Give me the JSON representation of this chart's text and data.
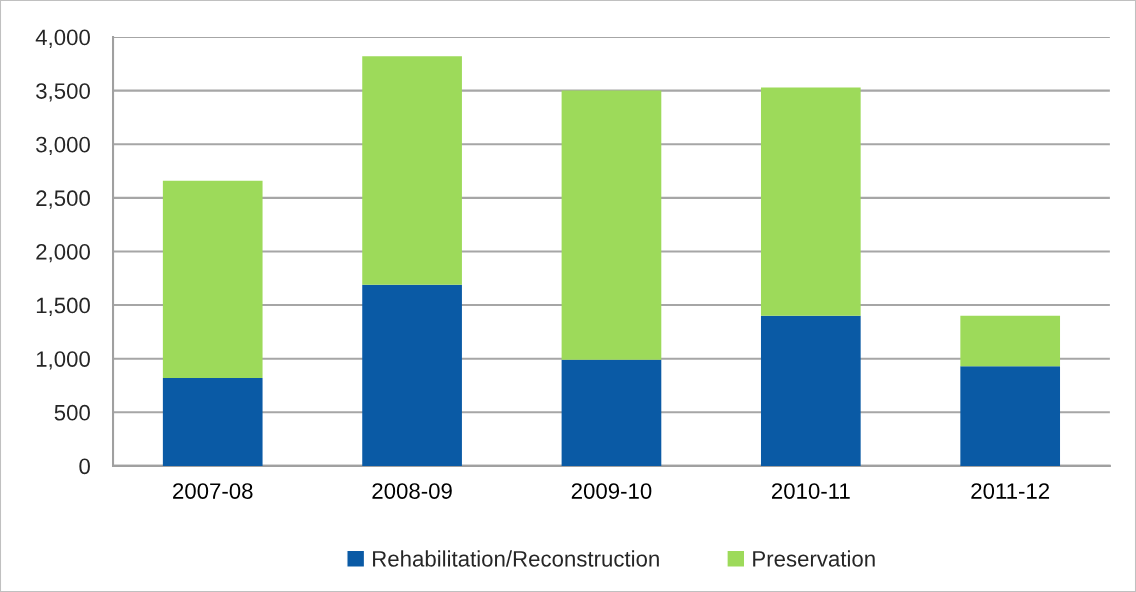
{
  "chart_data": {
    "type": "bar",
    "stacked": true,
    "categories": [
      "2007-08",
      "2008-09",
      "2009-10",
      "2010-11",
      "2011-12"
    ],
    "series": [
      {
        "name": "Rehabilitation/Reconstruction",
        "color": "#0a5aa5",
        "values": [
          820,
          1690,
          990,
          1400,
          930
        ]
      },
      {
        "name": "Preservation",
        "color": "#9dda5a",
        "values": [
          1840,
          2130,
          2510,
          2130,
          470
        ]
      }
    ],
    "ylim": [
      0,
      4000
    ],
    "yticks": [
      0,
      500,
      {
        "value": 1000,
        "label": "1,000"
      },
      {
        "value": 1500,
        "label": "1,500"
      },
      {
        "value": 2000,
        "label": "2,000"
      },
      {
        "value": 2500,
        "label": "2,500"
      },
      {
        "value": 3000,
        "label": "3,000"
      },
      {
        "value": 3500,
        "label": "3,500"
      },
      {
        "value": 4000,
        "label": "4,000"
      }
    ],
    "grid": "y",
    "legend": "bottom"
  }
}
